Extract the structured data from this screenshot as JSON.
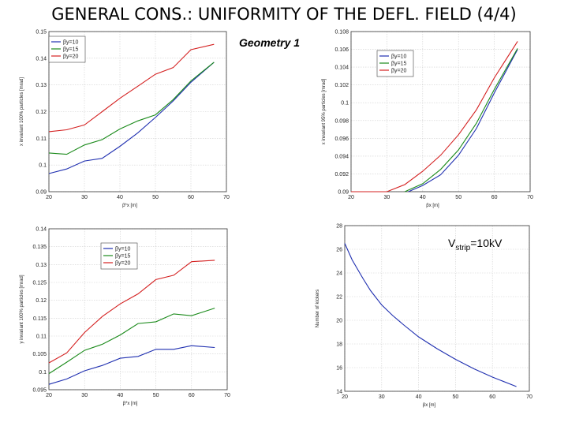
{
  "title": "GENERAL CONS.: UNIFORMITY OF THE DEFL. FIELD (4/4)",
  "geometry_label": "Geometry 1",
  "vstrip_label": {
    "main": "V",
    "sub": "strip",
    "tail": "=10kV"
  },
  "chart_data": [
    {
      "id": "tl",
      "type": "line",
      "xlabel": "β*x [m]",
      "ylabel": "x invariant 100% particles [mrad]",
      "xlim": [
        20,
        70
      ],
      "ylim": [
        0.09,
        0.15
      ],
      "xticks": [
        20,
        30,
        40,
        50,
        60,
        70
      ],
      "yticks": [
        0.09,
        0.1,
        0.11,
        0.12,
        0.13,
        0.14,
        0.15
      ],
      "ytick_labels": [
        "0.09",
        "0.1",
        "0.11",
        "0.12",
        "0.13",
        "0.14",
        "0.15"
      ],
      "legend": "top-left",
      "series": [
        {
          "name": "βy=10",
          "color": "#1f2fb0",
          "x": [
            20,
            25,
            30,
            35,
            40,
            45,
            50,
            55,
            60,
            66.5
          ],
          "y": [
            0.0968,
            0.0985,
            0.1015,
            0.1025,
            0.107,
            0.112,
            0.1178,
            0.124,
            0.131,
            0.1385
          ]
        },
        {
          "name": "βy=15",
          "color": "#1a8a1a",
          "x": [
            20,
            25,
            30,
            35,
            40,
            45,
            50,
            55,
            60,
            66.5
          ],
          "y": [
            0.1045,
            0.104,
            0.1075,
            0.1095,
            0.1135,
            0.1165,
            0.1188,
            0.1245,
            0.1315,
            0.1385
          ]
        },
        {
          "name": "βy=20",
          "color": "#d42020",
          "x": [
            20,
            25,
            30,
            35,
            40,
            45,
            50,
            55,
            60,
            66.5
          ],
          "y": [
            0.1125,
            0.1132,
            0.115,
            0.12,
            0.125,
            0.1295,
            0.134,
            0.1365,
            0.1432,
            0.1452
          ]
        }
      ]
    },
    {
      "id": "tr",
      "type": "line",
      "xlabel": "βx [m]",
      "ylabel": "x invariant 95% particles [mrad]",
      "xlim": [
        20,
        70
      ],
      "ylim": [
        0.09,
        0.108
      ],
      "xticks": [
        20,
        30,
        40,
        50,
        60,
        70
      ],
      "yticks": [
        0.09,
        0.092,
        0.094,
        0.096,
        0.098,
        0.1,
        0.102,
        0.104,
        0.106,
        0.108
      ],
      "ytick_labels": [
        "0.09",
        "0.092",
        "0.094",
        "0.096",
        "0.098",
        "0.1",
        "0.102",
        "0.104",
        "0.106",
        "0.108"
      ],
      "legend": "top-left",
      "series": [
        {
          "name": "βy=10",
          "color": "#1f2fb0",
          "x": [
            36,
            40,
            45,
            50,
            55,
            60,
            66.5
          ],
          "y": [
            0.09,
            0.0907,
            0.0919,
            0.0941,
            0.0971,
            0.1011,
            0.106
          ]
        },
        {
          "name": "βy=15",
          "color": "#1a8a1a",
          "x": [
            35,
            40,
            45,
            50,
            55,
            60,
            66.5
          ],
          "y": [
            0.09,
            0.0909,
            0.0925,
            0.0947,
            0.0977,
            0.1015,
            0.1061
          ]
        },
        {
          "name": "βy=20",
          "color": "#d42020",
          "x": [
            20,
            30,
            35,
            40,
            45,
            50,
            55,
            60,
            66.5
          ],
          "y": [
            0.09,
            0.09,
            0.0908,
            0.0923,
            0.0941,
            0.0964,
            0.0992,
            0.1028,
            0.1069
          ]
        }
      ]
    },
    {
      "id": "bl",
      "type": "line",
      "xlabel": "β*x [m]",
      "ylabel": "y invariant 100% particles [mrad]",
      "xlim": [
        20,
        70
      ],
      "ylim": [
        0.095,
        0.14
      ],
      "xticks": [
        20,
        30,
        40,
        50,
        60,
        70
      ],
      "yticks": [
        0.095,
        0.1,
        0.105,
        0.11,
        0.115,
        0.12,
        0.125,
        0.13,
        0.135,
        0.14
      ],
      "ytick_labels": [
        "0.095",
        "0.1",
        "0.105",
        "0.11",
        "0.115",
        "0.12",
        "0.125",
        "0.13",
        "0.135",
        "0.14"
      ],
      "legend": "top-right",
      "series": [
        {
          "name": "βy=10",
          "color": "#1f2fb0",
          "x": [
            20,
            25,
            30,
            35,
            40,
            45,
            50,
            55,
            60,
            66.5
          ],
          "y": [
            0.0965,
            0.098,
            0.1003,
            0.1018,
            0.1038,
            0.1043,
            0.1063,
            0.1063,
            0.1073,
            0.1068
          ]
        },
        {
          "name": "βy=15",
          "color": "#1a8a1a",
          "x": [
            20,
            25,
            30,
            35,
            40,
            45,
            50,
            55,
            60,
            66.5
          ],
          "y": [
            0.0995,
            0.1027,
            0.106,
            0.1077,
            0.1103,
            0.1135,
            0.114,
            0.1162,
            0.1157,
            0.1178
          ]
        },
        {
          "name": "βy=20",
          "color": "#d42020",
          "x": [
            20,
            25,
            30,
            35,
            40,
            45,
            50,
            55,
            60,
            66.5
          ],
          "y": [
            0.1025,
            0.1053,
            0.111,
            0.1155,
            0.119,
            0.1218,
            0.1258,
            0.127,
            0.1308,
            0.1312
          ]
        }
      ]
    },
    {
      "id": "br",
      "type": "line",
      "xlabel": "βx [m]",
      "ylabel": "Number of kickers",
      "xlim": [
        20,
        70
      ],
      "ylim": [
        14,
        28
      ],
      "xticks": [
        20,
        30,
        40,
        50,
        60,
        70
      ],
      "yticks": [
        14,
        16,
        18,
        20,
        22,
        24,
        26,
        28
      ],
      "ytick_labels": [
        "14",
        "16",
        "18",
        "20",
        "22",
        "24",
        "26",
        "28"
      ],
      "legend": "none",
      "series": [
        {
          "name": "kickers",
          "color": "#1f2fb0",
          "x": [
            20,
            22,
            25,
            27,
            30,
            33,
            36,
            40,
            45,
            50,
            55,
            60,
            66.5
          ],
          "y": [
            26.5,
            25.1,
            23.5,
            22.5,
            21.3,
            20.4,
            19.6,
            18.6,
            17.6,
            16.7,
            15.9,
            15.2,
            14.4
          ]
        }
      ]
    }
  ]
}
